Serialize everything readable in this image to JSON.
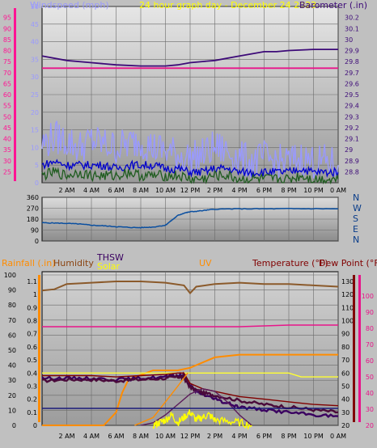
{
  "chart_data": [
    {
      "type": "line",
      "title": "24 hour graph day - December 24 2023",
      "left_axis_label": "Windspeed (mph)",
      "right_axis_label": "Barometer (.in)",
      "x_ticks": [
        "2 AM",
        "4 AM",
        "6 AM",
        "8 AM",
        "10 AM",
        "12 PM",
        "2 PM",
        "4 PM",
        "6 PM",
        "8 PM",
        "10 PM",
        "0 AM"
      ],
      "x_range_hours": [
        0,
        24
      ],
      "ylim_left": [
        0,
        50
      ],
      "ylim_right": [
        28.7,
        30.3
      ],
      "yticks_left": [
        0,
        5,
        10,
        15,
        20,
        25,
        30,
        35,
        40,
        45,
        50
      ],
      "yticks_right": [
        "28.8",
        "28.9",
        "29",
        "29.1",
        "29.2",
        "29.3",
        "29.4",
        "29.5",
        "29.6",
        "29.7",
        "29.8",
        "29.9",
        "30",
        "30.1",
        "30.2"
      ],
      "extra_scale_ticks": [
        25,
        30,
        35,
        40,
        45,
        50,
        55,
        60,
        65,
        70,
        75,
        80,
        85,
        90,
        95
      ],
      "extra_scale_color": "#ff1493",
      "series": [
        {
          "axis": "right",
          "color": "#3d0a78",
          "x": [
            0,
            2,
            4,
            6,
            8,
            10,
            11,
            12,
            13,
            14,
            16,
            18,
            19,
            20,
            22,
            24
          ],
          "values": [
            29.85,
            29.81,
            29.79,
            29.77,
            29.76,
            29.76,
            29.77,
            29.79,
            29.8,
            29.81,
            29.85,
            29.89,
            29.89,
            29.9,
            29.91,
            29.91
          ]
        },
        {
          "axis": "extra",
          "color": "#e8158a",
          "x": [
            0,
            4,
            8,
            12,
            16,
            20,
            24
          ],
          "values": [
            72,
            72,
            72,
            72,
            72,
            72,
            72
          ]
        },
        {
          "axis": "left",
          "color": "#9999ff",
          "x": [
            0,
            1,
            2,
            3,
            4,
            5,
            6,
            7,
            8,
            9,
            10,
            11,
            12,
            13,
            14,
            15,
            16,
            17,
            18,
            19,
            20,
            21,
            22,
            23,
            24
          ],
          "values": [
            11,
            13,
            12,
            10,
            12,
            11,
            10,
            11,
            12,
            10,
            9,
            8,
            7,
            8,
            10,
            9,
            7,
            6,
            7,
            6,
            6,
            7,
            6,
            6,
            5
          ]
        },
        {
          "axis": "left",
          "color": "#0000cc",
          "x": [
            0,
            1,
            2,
            3,
            4,
            5,
            6,
            7,
            8,
            9,
            10,
            11,
            12,
            13,
            14,
            15,
            16,
            17,
            18,
            19,
            20,
            21,
            22,
            23,
            24
          ],
          "values": [
            5,
            6,
            5,
            5,
            5,
            5,
            4,
            5,
            5,
            5,
            4,
            4,
            3,
            3,
            4,
            4,
            3,
            3,
            3,
            3,
            3,
            4,
            3,
            3,
            3
          ]
        },
        {
          "axis": "left",
          "color": "#1f5c1f",
          "x": [
            0,
            1,
            2,
            3,
            4,
            5,
            6,
            7,
            8,
            9,
            10,
            11,
            12,
            13,
            14,
            15,
            16,
            17,
            18,
            19,
            20,
            21,
            22,
            23,
            24
          ],
          "values": [
            2,
            3,
            2,
            3,
            2,
            2,
            2,
            3,
            2,
            2,
            2,
            2,
            1,
            1,
            2,
            2,
            1,
            1,
            1,
            1,
            1,
            2,
            1,
            1,
            1
          ]
        }
      ]
    },
    {
      "type": "line",
      "yticks_left": [
        0,
        90,
        180,
        270,
        360
      ],
      "ylim": [
        0,
        360
      ],
      "right_labels": [
        "N",
        "W",
        "S",
        "E",
        "N"
      ],
      "series": [
        {
          "name": "",
          "color": "#0a4fa0",
          "x": [
            0,
            1,
            2,
            3,
            4,
            5,
            6,
            7,
            8,
            9,
            10,
            10.5,
            11,
            11.5,
            12,
            13,
            14,
            16,
            18,
            20,
            22,
            24
          ],
          "values": [
            150,
            148,
            145,
            140,
            130,
            125,
            118,
            112,
            110,
            115,
            130,
            170,
            210,
            230,
            240,
            250,
            262,
            265,
            265,
            266,
            266,
            265
          ]
        }
      ]
    },
    {
      "type": "line",
      "labels": {
        "rainfall": "Rainfall (.in)",
        "humidity": "Humidity",
        "thsw": "THSW",
        "solar": "Solar",
        "uv": "UV",
        "temperature": "Temperature (°F)",
        "dew_point": "Dew Point (°F)"
      },
      "x_ticks": [
        "2 AM",
        "4 AM",
        "6 AM",
        "8 AM",
        "10 AM",
        "12 PM",
        "2 PM",
        "4 PM",
        "6 PM",
        "8 PM",
        "10 PM",
        "0 AM"
      ],
      "yticks_pct": [
        0,
        10,
        20,
        30,
        40,
        50,
        60,
        70,
        80,
        90,
        100
      ],
      "yticks_rain": [
        "0",
        "0.1",
        "0.2",
        "0.3",
        "0.4",
        "0.5",
        "0.6",
        "0.7",
        "0.8",
        "0.9",
        "1",
        "1.1"
      ],
      "yticks_temp": [
        20,
        30,
        40,
        50,
        60,
        70,
        80,
        90,
        100,
        110,
        120,
        130
      ],
      "yticks_pink": [
        20,
        30,
        40,
        50,
        60,
        70,
        80,
        90,
        100
      ],
      "colors": {
        "rainfall": "#ff8c00",
        "humidity": "#8b4513",
        "thsw": "#3a0060",
        "solar": "#ffff00",
        "uv": "#ff8c00",
        "temperature": "#4a0a3a",
        "dew_point": "#800000",
        "pink": "#e8158a"
      },
      "series": [
        {
          "key": "humidity",
          "scale": "temp",
          "x": [
            0,
            1,
            2,
            4,
            6,
            8,
            10,
            11.5,
            12,
            12.5,
            14,
            16,
            18,
            20,
            22,
            24
          ],
          "values": [
            123,
            124,
            128,
            129,
            130,
            130,
            129,
            127,
            121,
            126,
            128,
            129,
            128,
            128,
            127,
            126
          ]
        },
        {
          "key": "pink",
          "scale": "pink",
          "x": [
            0,
            4,
            8,
            12,
            16,
            20,
            24
          ],
          "values": [
            81,
            81,
            81,
            81,
            81,
            82,
            82
          ]
        },
        {
          "key": "rainfall",
          "scale": "rain",
          "x": [
            0,
            5,
            6,
            6.5,
            7,
            9,
            11,
            12,
            13,
            14,
            16,
            17,
            18,
            20,
            22,
            24
          ],
          "values": [
            0,
            0,
            0.1,
            0.25,
            0.35,
            0.42,
            0.42,
            0.44,
            0.48,
            0.52,
            0.54,
            0.54,
            0.54,
            0.54,
            0.54,
            0.54
          ]
        },
        {
          "key": "solar_line",
          "scale": "rain",
          "x": [
            0,
            4,
            8,
            12,
            16,
            20,
            21,
            24
          ],
          "values": [
            0.4,
            0.4,
            0.4,
            0.4,
            0.4,
            0.4,
            0.37,
            0.37
          ]
        },
        {
          "key": "thsw",
          "scale": "temp",
          "x": [
            0,
            2,
            4,
            6,
            8,
            10,
            11,
            11.5,
            12,
            12.5,
            13,
            14,
            15,
            16,
            18,
            20,
            22,
            24
          ],
          "values": [
            56,
            56,
            56,
            55,
            56,
            57,
            58,
            58,
            50,
            46,
            44,
            40,
            37,
            34,
            32,
            30,
            28,
            27
          ]
        },
        {
          "key": "dew_point",
          "scale": "temp",
          "x": [
            0,
            2,
            4,
            6,
            8,
            10,
            11,
            11.5,
            12,
            13,
            14,
            16,
            18,
            20,
            22,
            24
          ],
          "values": [
            58,
            58,
            58,
            57,
            58,
            59,
            60,
            60,
            52,
            48,
            46,
            42,
            40,
            38,
            36,
            35
          ]
        },
        {
          "key": "temperature",
          "scale": "temp",
          "x": [
            0,
            2,
            4,
            6,
            8,
            10,
            11,
            11.5,
            12,
            13,
            14,
            16,
            18,
            20,
            22,
            24
          ],
          "values": [
            54,
            55,
            55,
            54,
            55,
            56,
            57,
            57,
            49,
            45,
            43,
            39,
            36,
            34,
            32,
            30
          ]
        },
        {
          "key": "uv",
          "scale": "temp",
          "x": [
            8,
            9,
            10,
            11,
            12,
            13,
            14,
            15,
            16,
            17
          ],
          "values": [
            20,
            22,
            28,
            36,
            44,
            48,
            46,
            38,
            28,
            20
          ]
        },
        {
          "key": "uv2",
          "scale": "temp",
          "x": [
            7.5,
            9,
            10,
            11,
            11.8
          ],
          "values": [
            20,
            26,
            38,
            50,
            60
          ]
        },
        {
          "key": "solar",
          "scale": "temp",
          "x": [
            9,
            9.5,
            10,
            10.5,
            11,
            11.5,
            12,
            12.5,
            13,
            13.5,
            14,
            15,
            16,
            17
          ],
          "values": [
            20,
            22,
            24,
            28,
            22,
            26,
            30,
            24,
            26,
            28,
            24,
            23,
            22,
            20
          ]
        },
        {
          "key": "navy",
          "scale": "temp",
          "x": [
            0,
            24
          ],
          "values": [
            33,
            33
          ]
        }
      ]
    }
  ]
}
